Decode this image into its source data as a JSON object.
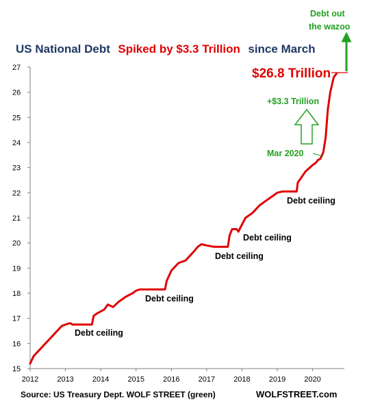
{
  "chart_data": {
    "type": "line",
    "title_parts": [
      {
        "text": "US National Debt",
        "color": "#1f3864"
      },
      {
        "text": "Spiked by $3.3 Trillion",
        "color": "#e00000"
      },
      {
        "text": "since March",
        "color": "#1f3864"
      }
    ],
    "x_ticks": [
      "2012",
      "2013",
      "2014",
      "2015",
      "2016",
      "2017",
      "2018",
      "2019",
      "2020"
    ],
    "y_ticks": [
      "15",
      "16",
      "17",
      "18",
      "19",
      "20",
      "21",
      "22",
      "23",
      "24",
      "25",
      "26",
      "27"
    ],
    "xlim": [
      2012,
      2020.9
    ],
    "ylim": [
      15,
      27
    ],
    "series": [
      {
        "color": "#e00000",
        "x": [
          2012.0,
          2012.1,
          2012.3,
          2012.5,
          2012.7,
          2012.9,
          2013.1,
          2013.15,
          2013.2,
          2013.45,
          2013.75,
          2013.8,
          2013.9,
          2014.1,
          2014.2,
          2014.35,
          2014.5,
          2014.7,
          2014.9,
          2015.0,
          2015.1,
          2015.15,
          2015.35,
          2015.6,
          2015.82,
          2015.87,
          2016.0,
          2016.2,
          2016.4,
          2016.6,
          2016.75,
          2016.85,
          2017.0,
          2017.2,
          2017.6,
          2017.65,
          2017.72,
          2017.85,
          2017.9,
          2017.95,
          2018.1,
          2018.3,
          2018.5,
          2018.7,
          2018.9,
          2019.0,
          2019.15,
          2019.45,
          2019.55,
          2019.58,
          2019.8,
          2020.0,
          2020.1,
          2020.15,
          2020.22,
          2020.3,
          2020.37,
          2020.43,
          2020.5,
          2020.6,
          2020.68
        ],
        "values": [
          15.2,
          15.5,
          15.8,
          16.1,
          16.4,
          16.7,
          16.8,
          16.8,
          16.75,
          16.75,
          16.75,
          17.1,
          17.2,
          17.35,
          17.55,
          17.45,
          17.65,
          17.85,
          18.0,
          18.1,
          18.15,
          18.15,
          18.15,
          18.15,
          18.15,
          18.5,
          18.9,
          19.2,
          19.3,
          19.6,
          19.85,
          19.95,
          19.9,
          19.85,
          19.85,
          20.3,
          20.55,
          20.55,
          20.45,
          20.6,
          21.0,
          21.2,
          21.5,
          21.7,
          21.9,
          22.0,
          22.05,
          22.05,
          22.05,
          22.4,
          22.85,
          23.1,
          23.2,
          23.3,
          23.35,
          23.6,
          24.2,
          25.3,
          26.0,
          26.6,
          26.75
        ]
      }
    ],
    "big_value_label": "$26.8 Trillion",
    "big_value_y": 26.8,
    "increase_label": "+$3.3 Trillion",
    "march_label": "Mar 2020",
    "top_label_line1": "Debt out",
    "top_label_line2": "the wazoo",
    "debt_ceiling_label": "Debt ceiling",
    "source": "Source: US Treasury Dept. WOLF STREET (green)",
    "brand": "WOLFSTREET.com",
    "colors": {
      "line": "#e00000",
      "annotation": "#22a022",
      "title_dark": "#1f3864",
      "title_red": "#e00000",
      "axis": "#7f7f7f"
    }
  }
}
